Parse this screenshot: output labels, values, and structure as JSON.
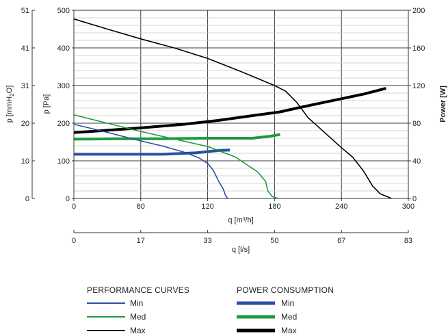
{
  "chart_data": {
    "type": "line",
    "grid": true,
    "x_primary": {
      "label": "q [m³/h]",
      "ticks": [
        "0",
        "60",
        "120",
        "180",
        "240",
        "300"
      ],
      "lim": [
        0,
        300
      ]
    },
    "x_secondary": {
      "label": "q [l/s]",
      "ticks": [
        "0",
        "17",
        "33",
        "50",
        "67",
        "83"
      ],
      "lim": [
        0,
        83.3
      ]
    },
    "y_left_pa": {
      "label": "p [Pa]",
      "ticks": [
        "0",
        "100",
        "200",
        "300",
        "400",
        "500"
      ],
      "lim": [
        0,
        500
      ]
    },
    "y_left_mmh2o": {
      "label_prefix": "p [mmH",
      "label_sub": "2",
      "label_suffix": "O]",
      "ticks": [
        "0",
        "10",
        "20",
        "31",
        "41",
        "51"
      ]
    },
    "y_right": {
      "label": "Power [W]",
      "ticks": [
        "0",
        "40",
        "80",
        "120",
        "160",
        "200"
      ],
      "lim": [
        0,
        200
      ]
    },
    "colors": {
      "min": "#2a4fa0",
      "med": "#1e9a3c",
      "max": "#000000"
    },
    "performance_series": [
      {
        "name": "Min",
        "color_key": "min",
        "points": [
          [
            0,
            197
          ],
          [
            20,
            183
          ],
          [
            40,
            168
          ],
          [
            60,
            153
          ],
          [
            80,
            139
          ],
          [
            100,
            122
          ],
          [
            112,
            108
          ],
          [
            120,
            93
          ],
          [
            125,
            75
          ],
          [
            130,
            45
          ],
          [
            134,
            25
          ],
          [
            136,
            8
          ],
          [
            138,
            0
          ]
        ]
      },
      {
        "name": "Med",
        "color_key": "med",
        "points": [
          [
            0,
            222
          ],
          [
            30,
            200
          ],
          [
            60,
            178
          ],
          [
            90,
            158
          ],
          [
            120,
            138
          ],
          [
            145,
            110
          ],
          [
            165,
            70
          ],
          [
            172,
            45
          ],
          [
            174,
            20
          ],
          [
            178,
            5
          ],
          [
            183,
            0
          ]
        ]
      },
      {
        "name": "Max",
        "color_key": "max",
        "points": [
          [
            0,
            477
          ],
          [
            30,
            450
          ],
          [
            60,
            424
          ],
          [
            90,
            400
          ],
          [
            120,
            372
          ],
          [
            150,
            337
          ],
          [
            180,
            300
          ],
          [
            190,
            285
          ],
          [
            200,
            255
          ],
          [
            210,
            215
          ],
          [
            240,
            135
          ],
          [
            250,
            110
          ],
          [
            260,
            72
          ],
          [
            268,
            33
          ],
          [
            275,
            12
          ],
          [
            285,
            0
          ]
        ]
      }
    ],
    "power_series": [
      {
        "name": "Min",
        "color_key": "min",
        "points": [
          [
            0,
            47
          ],
          [
            40,
            47
          ],
          [
            80,
            47
          ],
          [
            110,
            48.5
          ],
          [
            130,
            51
          ],
          [
            140,
            51.5
          ]
        ]
      },
      {
        "name": "Med",
        "color_key": "med",
        "points": [
          [
            0,
            63
          ],
          [
            40,
            63.5
          ],
          [
            80,
            63.5
          ],
          [
            120,
            64
          ],
          [
            160,
            64
          ],
          [
            175,
            66
          ],
          [
            185,
            68
          ],
          [
            185,
            68
          ]
        ]
      },
      {
        "name": "Max",
        "color_key": "max",
        "points": [
          [
            0,
            70
          ],
          [
            60,
            75
          ],
          [
            100,
            79
          ],
          [
            130,
            83
          ],
          [
            160,
            88
          ],
          [
            185,
            92
          ],
          [
            200,
            96
          ],
          [
            220,
            101
          ],
          [
            240,
            106
          ],
          [
            260,
            111
          ],
          [
            280,
            117
          ]
        ]
      }
    ]
  },
  "legend": {
    "performance_title": "PERFORMANCE CURVES",
    "power_title": "POWER CONSUMPTION",
    "items": [
      "Min",
      "Med",
      "Max"
    ]
  }
}
